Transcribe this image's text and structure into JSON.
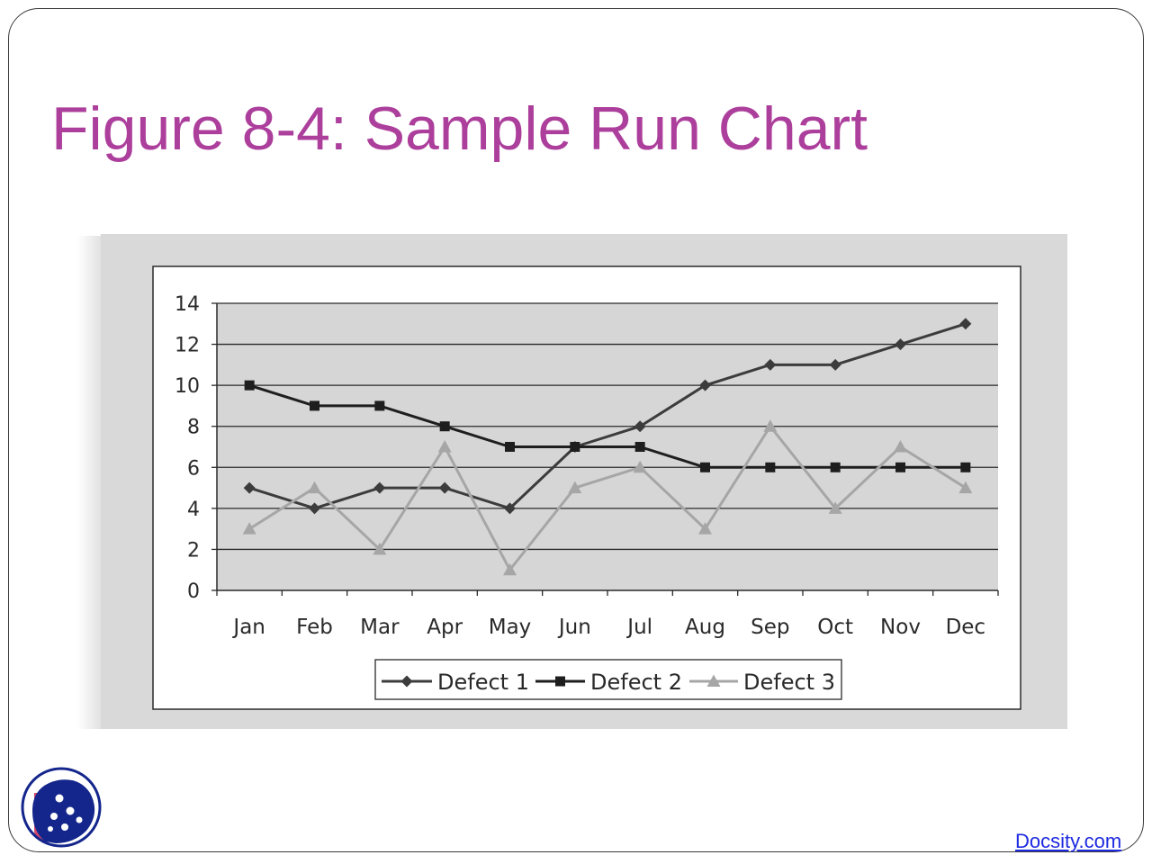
{
  "slide": {
    "title": "Figure 8-4: Sample Run Chart",
    "footer_link": "Docsity.com"
  },
  "colors": {
    "title": "#ad3f9c",
    "link": "#1d2ae0",
    "defect1": "#3c3c3c",
    "defect2": "#1e1e1e",
    "defect3": "#a6a6a6",
    "plot_bg": "#d6d6d6",
    "outer_bg": "#d9d9d9"
  },
  "chart_data": {
    "type": "line",
    "categories": [
      "Jan",
      "Feb",
      "Mar",
      "Apr",
      "May",
      "Jun",
      "Jul",
      "Aug",
      "Sep",
      "Oct",
      "Nov",
      "Dec"
    ],
    "series": [
      {
        "name": "Defect 1",
        "marker": "diamond",
        "values": [
          5,
          4,
          5,
          5,
          4,
          7,
          8,
          10,
          11,
          11,
          12,
          13
        ]
      },
      {
        "name": "Defect 2",
        "marker": "square",
        "values": [
          10,
          9,
          9,
          8,
          7,
          7,
          7,
          6,
          6,
          6,
          6,
          6
        ]
      },
      {
        "name": "Defect 3",
        "marker": "triangle",
        "values": [
          3,
          5,
          2,
          7,
          1,
          5,
          6,
          3,
          8,
          4,
          7,
          5
        ]
      }
    ],
    "ylim": [
      0,
      14
    ],
    "yticks": [
      "0",
      "2",
      "4",
      "6",
      "8",
      "10",
      "12",
      "14"
    ],
    "grid": true,
    "legend_position": "bottom"
  }
}
